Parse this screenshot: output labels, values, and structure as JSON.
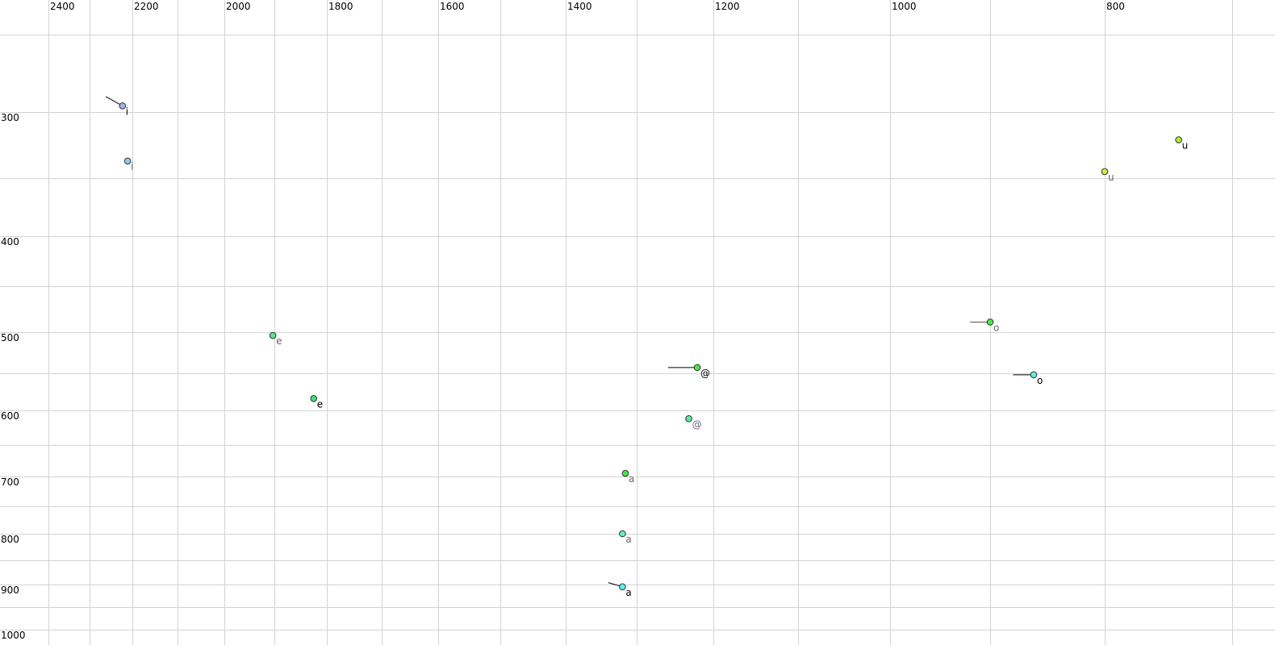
{
  "chart_data": {
    "type": "scatter",
    "title": "",
    "xlabel": "",
    "ylabel": "",
    "x_axis": {
      "reversed": true,
      "position": "top",
      "xlim": [
        2450,
        690
      ],
      "gridlines": [
        2400,
        2300,
        2200,
        2100,
        2000,
        1900,
        1800,
        1700,
        1600,
        1500,
        1400,
        1300,
        1200,
        1100,
        1000,
        900,
        800,
        700
      ],
      "tick_labels": [
        "2400",
        "2200",
        "2000",
        "1800",
        "1600",
        "1400",
        "1200",
        "1000",
        "800"
      ]
    },
    "y_axis": {
      "reversed": true,
      "position": "left",
      "ylim": [
        230,
        1020
      ],
      "gridlines": [
        250,
        300,
        350,
        400,
        450,
        500,
        550,
        600,
        650,
        700,
        750,
        800,
        850,
        900,
        950,
        1000
      ],
      "tick_labels": [
        "300",
        "400",
        "500",
        "600",
        "700",
        "800",
        "900",
        "1000"
      ]
    },
    "grid": true,
    "grid_color": "#d3d3d3",
    "points": [
      {
        "label": "i",
        "x": 2223,
        "y": 296,
        "color": "#9fb4f5",
        "label_color": "#000000",
        "trail": [
          2262,
          290
        ]
      },
      {
        "label": "i",
        "x": 2211,
        "y": 337,
        "color": "#8ccdf7",
        "label_color": "#666677"
      },
      {
        "label": "u",
        "x": 742,
        "y": 321,
        "color": "#a8f030",
        "label_color": "#000000"
      },
      {
        "label": "u",
        "x": 800,
        "y": 345,
        "color": "#ccf040",
        "label_color": "#666677"
      },
      {
        "label": "e",
        "x": 1903,
        "y": 504,
        "color": "#55ec80",
        "label_color": "#666677"
      },
      {
        "label": "e",
        "x": 1825,
        "y": 584,
        "color": "#3ee070",
        "label_color": "#000000"
      },
      {
        "label": "@",
        "x": 1221,
        "y": 543,
        "color": "#48e848",
        "label_color": "#000000",
        "trail": [
          1259,
          543
        ]
      },
      {
        "label": "@",
        "x": 1232,
        "y": 612,
        "color": "#55f0a0",
        "label_color": "#666677",
        "trail": [
          1237,
          612
        ]
      },
      {
        "label": "o",
        "x": 900,
        "y": 489,
        "color": "#48ec48",
        "label_color": "#666677",
        "trail": [
          920,
          489
        ]
      },
      {
        "label": "o",
        "x": 862,
        "y": 552,
        "color": "#60f0e0",
        "label_color": "#000000",
        "trail": [
          880,
          552
        ]
      },
      {
        "label": "a",
        "x": 1316,
        "y": 695,
        "color": "#44e844",
        "label_color": "#666677"
      },
      {
        "label": "a",
        "x": 1320,
        "y": 800,
        "color": "#60f0c0",
        "label_color": "#666677"
      },
      {
        "label": "a",
        "x": 1320,
        "y": 905,
        "color": "#60f0f0",
        "label_color": "#000000",
        "trail": [
          1340,
          896
        ]
      }
    ]
  }
}
